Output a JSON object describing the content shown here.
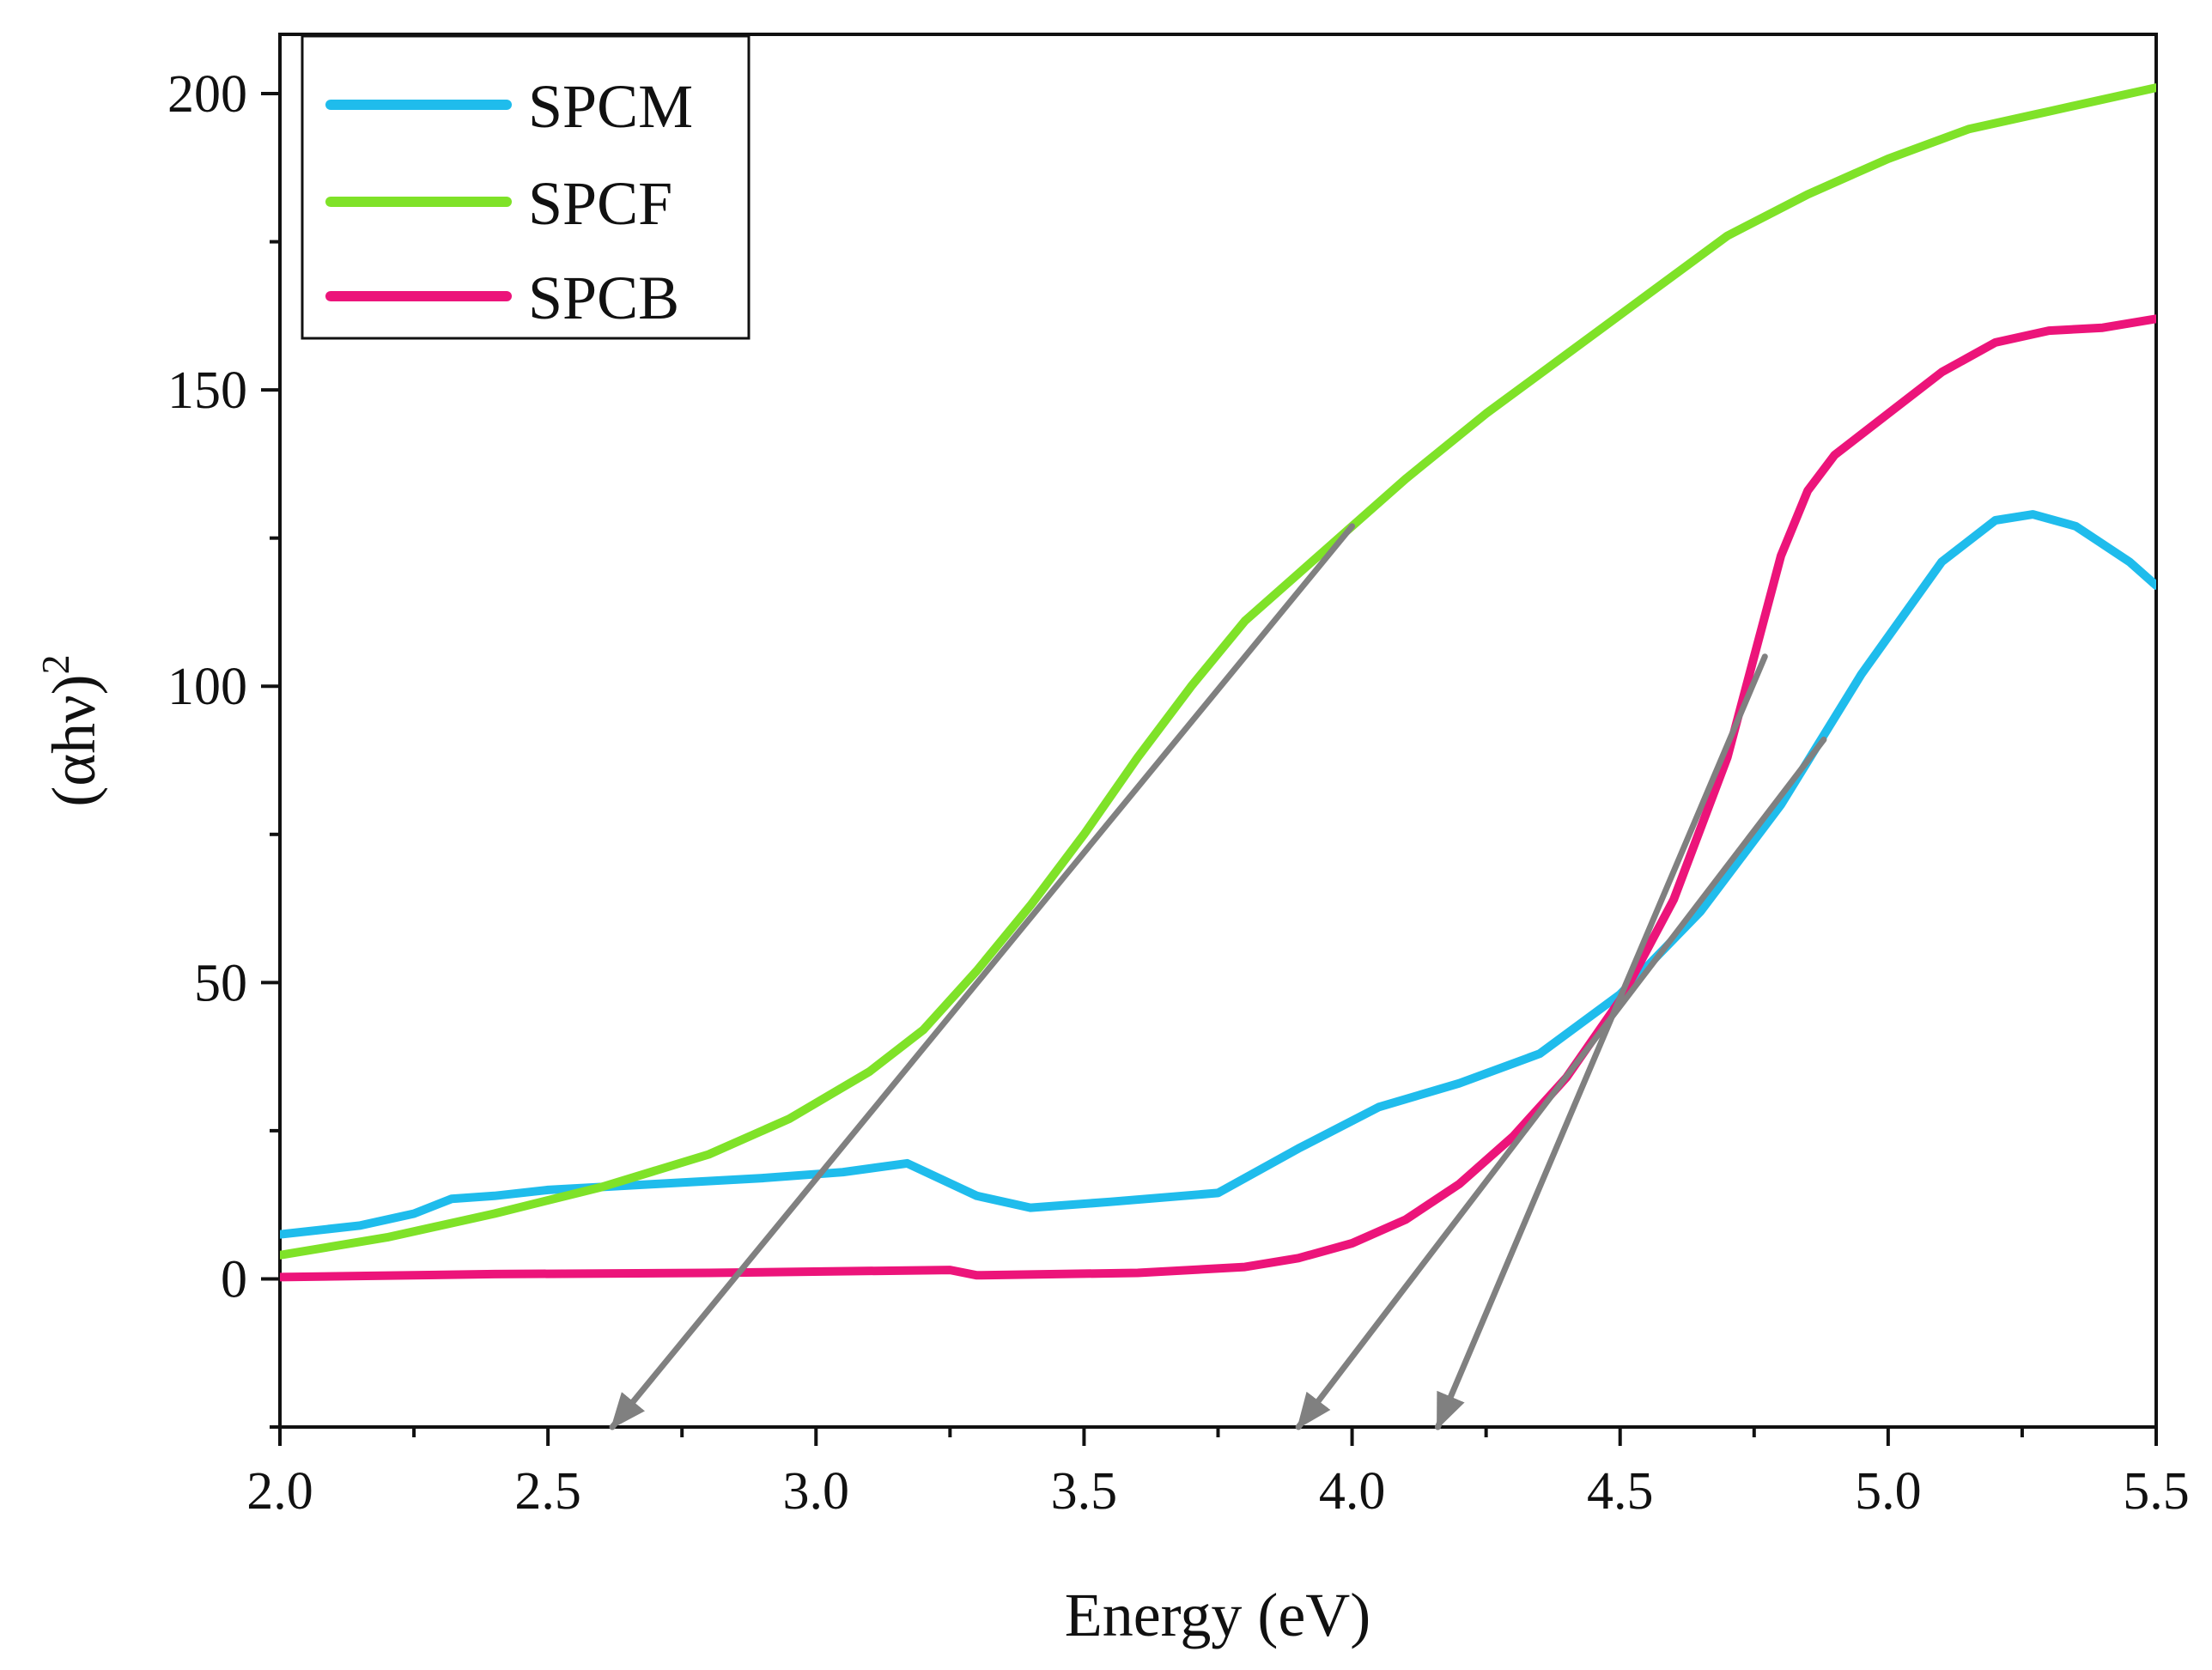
{
  "chart_data": {
    "type": "line",
    "title": "",
    "xlabel": "Energy (eV)",
    "ylabel_base": "(αhν)",
    "ylabel_sup": "2",
    "xlim": [
      2.0,
      5.5
    ],
    "ylim": [
      -25,
      210
    ],
    "x_ticks": [
      2.0,
      2.5,
      3.0,
      3.5,
      4.0,
      4.5,
      5.0,
      5.5
    ],
    "x_tick_labels": [
      "2.0",
      "2.5",
      "3.0",
      "3.5",
      "4.0",
      "4.5",
      "5.0",
      "5.5"
    ],
    "y_ticks": [
      0,
      50,
      100,
      150,
      200
    ],
    "y_tick_labels": [
      "0",
      "50",
      "100",
      "150",
      "200"
    ],
    "grid": false,
    "legend_position": "top-left",
    "series": [
      {
        "name": "SPCM",
        "color": "#1fbcec",
        "points": [
          [
            2.0,
            7.5
          ],
          [
            2.15,
            9
          ],
          [
            2.25,
            11
          ],
          [
            2.32,
            13.5
          ],
          [
            2.4,
            14
          ],
          [
            2.5,
            15
          ],
          [
            2.7,
            16
          ],
          [
            2.9,
            17
          ],
          [
            3.05,
            18
          ],
          [
            3.17,
            19.5
          ],
          [
            3.3,
            14
          ],
          [
            3.4,
            12
          ],
          [
            3.55,
            13
          ],
          [
            3.75,
            14.5
          ],
          [
            3.9,
            22
          ],
          [
            4.05,
            29
          ],
          [
            4.2,
            33
          ],
          [
            4.35,
            38
          ],
          [
            4.5,
            48
          ],
          [
            4.65,
            62
          ],
          [
            4.8,
            80
          ],
          [
            4.95,
            102
          ],
          [
            5.1,
            121
          ],
          [
            5.2,
            128
          ],
          [
            5.27,
            129
          ],
          [
            5.35,
            127
          ],
          [
            5.45,
            121
          ],
          [
            5.5,
            117
          ]
        ]
      },
      {
        "name": "SPCF",
        "color": "#7fe228",
        "points": [
          [
            2.0,
            4
          ],
          [
            2.2,
            7
          ],
          [
            2.4,
            11
          ],
          [
            2.6,
            15.5
          ],
          [
            2.8,
            21
          ],
          [
            2.95,
            27
          ],
          [
            3.1,
            35
          ],
          [
            3.2,
            42
          ],
          [
            3.3,
            52
          ],
          [
            3.4,
            63
          ],
          [
            3.5,
            75
          ],
          [
            3.6,
            88
          ],
          [
            3.7,
            100
          ],
          [
            3.8,
            111
          ],
          [
            3.9,
            119
          ],
          [
            4.0,
            127
          ],
          [
            4.1,
            135
          ],
          [
            4.25,
            146
          ],
          [
            4.4,
            156
          ],
          [
            4.55,
            166
          ],
          [
            4.7,
            176
          ],
          [
            4.85,
            183
          ],
          [
            5.0,
            189
          ],
          [
            5.15,
            194
          ],
          [
            5.3,
            197
          ],
          [
            5.45,
            200
          ],
          [
            5.5,
            201
          ]
        ]
      },
      {
        "name": "SPCB",
        "color": "#ec147a",
        "points": [
          [
            2.0,
            0.3
          ],
          [
            2.4,
            0.8
          ],
          [
            2.8,
            1
          ],
          [
            3.25,
            1.5
          ],
          [
            3.3,
            0.6
          ],
          [
            3.6,
            1
          ],
          [
            3.8,
            2
          ],
          [
            3.9,
            3.5
          ],
          [
            4.0,
            6
          ],
          [
            4.1,
            10
          ],
          [
            4.2,
            16
          ],
          [
            4.3,
            24
          ],
          [
            4.4,
            34
          ],
          [
            4.5,
            47
          ],
          [
            4.6,
            64
          ],
          [
            4.7,
            88
          ],
          [
            4.75,
            105
          ],
          [
            4.8,
            122
          ],
          [
            4.85,
            133
          ],
          [
            4.9,
            139
          ],
          [
            5.0,
            146
          ],
          [
            5.1,
            153
          ],
          [
            5.2,
            158
          ],
          [
            5.3,
            160
          ],
          [
            5.4,
            160.5
          ],
          [
            5.5,
            162
          ]
        ]
      }
    ],
    "fit_lines": [
      {
        "color": "#808080",
        "from": [
          4.0,
          127
        ],
        "to": [
          2.62,
          -25
        ]
      },
      {
        "color": "#808080",
        "from": [
          4.88,
          91
        ],
        "to": [
          3.9,
          -25
        ]
      },
      {
        "color": "#808080",
        "from": [
          4.77,
          105
        ],
        "to": [
          4.16,
          -25
        ]
      }
    ]
  }
}
